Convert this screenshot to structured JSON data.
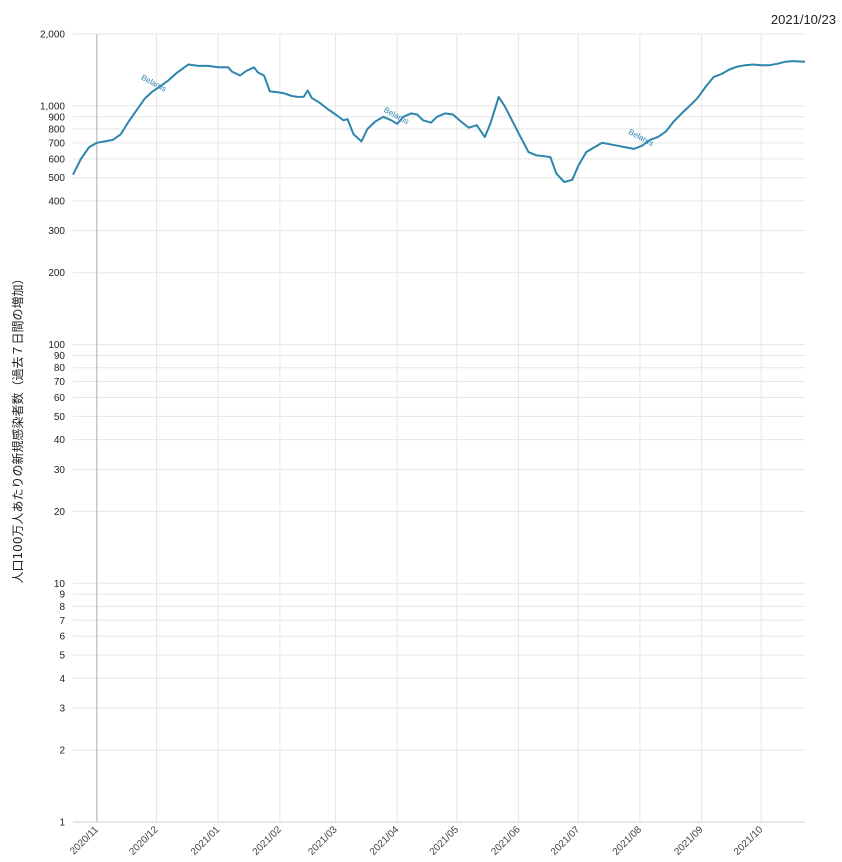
{
  "header": {
    "date": "2021/10/23"
  },
  "chart_data": {
    "type": "line",
    "title": "",
    "xlabel": "",
    "ylabel": "人口100万人あたりの新規感染者数（過去７日間の増加）",
    "yscale": "log",
    "ylim": [
      1,
      2000
    ],
    "xlim": [
      "2020-10-20",
      "2021-10-23"
    ],
    "grid": true,
    "color": "#2e85ad",
    "y_ticks": [
      1,
      2,
      3,
      4,
      5,
      6,
      7,
      8,
      9,
      10,
      20,
      30,
      40,
      50,
      60,
      70,
      80,
      90,
      100,
      200,
      300,
      400,
      500,
      600,
      700,
      800,
      900,
      1000,
      2000
    ],
    "y_tick_labels": [
      "1",
      "2",
      "3",
      "4",
      "5",
      "6",
      "7",
      "8",
      "9",
      "10",
      "20",
      "30",
      "40",
      "50",
      "60",
      "70",
      "80",
      "90",
      "100",
      "200",
      "300",
      "400",
      "500",
      "600",
      "700",
      "800",
      "900",
      "1,000",
      "2,000"
    ],
    "x_ticks": [
      {
        "date": "2020-11-01",
        "label": "2020/11"
      },
      {
        "date": "2020-12-01",
        "label": "2020/12"
      },
      {
        "date": "2021-01-01",
        "label": "2021/01"
      },
      {
        "date": "2021-02-01",
        "label": "2021/02"
      },
      {
        "date": "2021-03-01",
        "label": "2021/03"
      },
      {
        "date": "2021-04-01",
        "label": "2021/04"
      },
      {
        "date": "2021-05-01",
        "label": "2021/05"
      },
      {
        "date": "2021-06-01",
        "label": "2021/06"
      },
      {
        "date": "2021-07-01",
        "label": "2021/07"
      },
      {
        "date": "2021-08-01",
        "label": "2021/08"
      },
      {
        "date": "2021-09-01",
        "label": "2021/09"
      },
      {
        "date": "2021-10-01",
        "label": "2021/10"
      }
    ],
    "series": [
      {
        "name": "Belarus",
        "label_dates": [
          "2020-11-29",
          "2021-03-31",
          "2021-08-01"
        ],
        "points": [
          [
            "2020-10-20",
            515
          ],
          [
            "2020-10-24",
            600
          ],
          [
            "2020-10-28",
            670
          ],
          [
            "2020-11-01",
            700
          ],
          [
            "2020-11-05",
            710
          ],
          [
            "2020-11-09",
            720
          ],
          [
            "2020-11-13",
            760
          ],
          [
            "2020-11-17",
            860
          ],
          [
            "2020-11-21",
            960
          ],
          [
            "2020-11-25",
            1070
          ],
          [
            "2020-11-29",
            1150
          ],
          [
            "2020-12-03",
            1210
          ],
          [
            "2020-12-07",
            1280
          ],
          [
            "2020-12-11",
            1370
          ],
          [
            "2020-12-15",
            1450
          ],
          [
            "2020-12-17",
            1490
          ],
          [
            "2020-12-22",
            1470
          ],
          [
            "2020-12-27",
            1470
          ],
          [
            "2021-01-01",
            1450
          ],
          [
            "2021-01-04",
            1450
          ],
          [
            "2021-01-06",
            1450
          ],
          [
            "2021-01-08",
            1390
          ],
          [
            "2021-01-12",
            1340
          ],
          [
            "2021-01-15",
            1400
          ],
          [
            "2021-01-19",
            1450
          ],
          [
            "2021-01-21",
            1380
          ],
          [
            "2021-01-24",
            1340
          ],
          [
            "2021-01-27",
            1150
          ],
          [
            "2021-01-31",
            1140
          ],
          [
            "2021-02-03",
            1130
          ],
          [
            "2021-02-07",
            1100
          ],
          [
            "2021-02-10",
            1090
          ],
          [
            "2021-02-13",
            1090
          ],
          [
            "2021-02-15",
            1160
          ],
          [
            "2021-02-17",
            1080
          ],
          [
            "2021-02-21",
            1030
          ],
          [
            "2021-02-25",
            970
          ],
          [
            "2021-03-01",
            920
          ],
          [
            "2021-03-05",
            870
          ],
          [
            "2021-03-07",
            880
          ],
          [
            "2021-03-10",
            760
          ],
          [
            "2021-03-14",
            710
          ],
          [
            "2021-03-17",
            800
          ],
          [
            "2021-03-21",
            860
          ],
          [
            "2021-03-25",
            900
          ],
          [
            "2021-03-29",
            870
          ],
          [
            "2021-04-01",
            840
          ],
          [
            "2021-04-04",
            900
          ],
          [
            "2021-04-08",
            930
          ],
          [
            "2021-04-11",
            920
          ],
          [
            "2021-04-14",
            870
          ],
          [
            "2021-04-18",
            850
          ],
          [
            "2021-04-21",
            900
          ],
          [
            "2021-04-25",
            930
          ],
          [
            "2021-04-29",
            920
          ],
          [
            "2021-05-03",
            860
          ],
          [
            "2021-05-07",
            810
          ],
          [
            "2021-05-11",
            830
          ],
          [
            "2021-05-15",
            740
          ],
          [
            "2021-05-18",
            850
          ],
          [
            "2021-05-22",
            1090
          ],
          [
            "2021-05-25",
            1000
          ],
          [
            "2021-05-29",
            860
          ],
          [
            "2021-06-02",
            740
          ],
          [
            "2021-06-06",
            640
          ],
          [
            "2021-06-10",
            620
          ],
          [
            "2021-06-14",
            615
          ],
          [
            "2021-06-17",
            610
          ],
          [
            "2021-06-20",
            520
          ],
          [
            "2021-06-24",
            480
          ],
          [
            "2021-06-28",
            490
          ],
          [
            "2021-07-01",
            560
          ],
          [
            "2021-07-05",
            640
          ],
          [
            "2021-07-09",
            670
          ],
          [
            "2021-07-13",
            700
          ],
          [
            "2021-07-17",
            690
          ],
          [
            "2021-07-21",
            680
          ],
          [
            "2021-07-25",
            670
          ],
          [
            "2021-07-29",
            660
          ],
          [
            "2021-08-02",
            680
          ],
          [
            "2021-08-06",
            720
          ],
          [
            "2021-08-10",
            740
          ],
          [
            "2021-08-14",
            780
          ],
          [
            "2021-08-18",
            860
          ],
          [
            "2021-08-22",
            930
          ],
          [
            "2021-08-26",
            1000
          ],
          [
            "2021-08-30",
            1080
          ],
          [
            "2021-09-03",
            1200
          ],
          [
            "2021-09-07",
            1320
          ],
          [
            "2021-09-11",
            1360
          ],
          [
            "2021-09-15",
            1420
          ],
          [
            "2021-09-19",
            1460
          ],
          [
            "2021-09-23",
            1480
          ],
          [
            "2021-09-27",
            1490
          ],
          [
            "2021-10-01",
            1480
          ],
          [
            "2021-10-05",
            1480
          ],
          [
            "2021-10-09",
            1500
          ],
          [
            "2021-10-13",
            1530
          ],
          [
            "2021-10-17",
            1540
          ],
          [
            "2021-10-23",
            1530
          ]
        ]
      }
    ]
  }
}
